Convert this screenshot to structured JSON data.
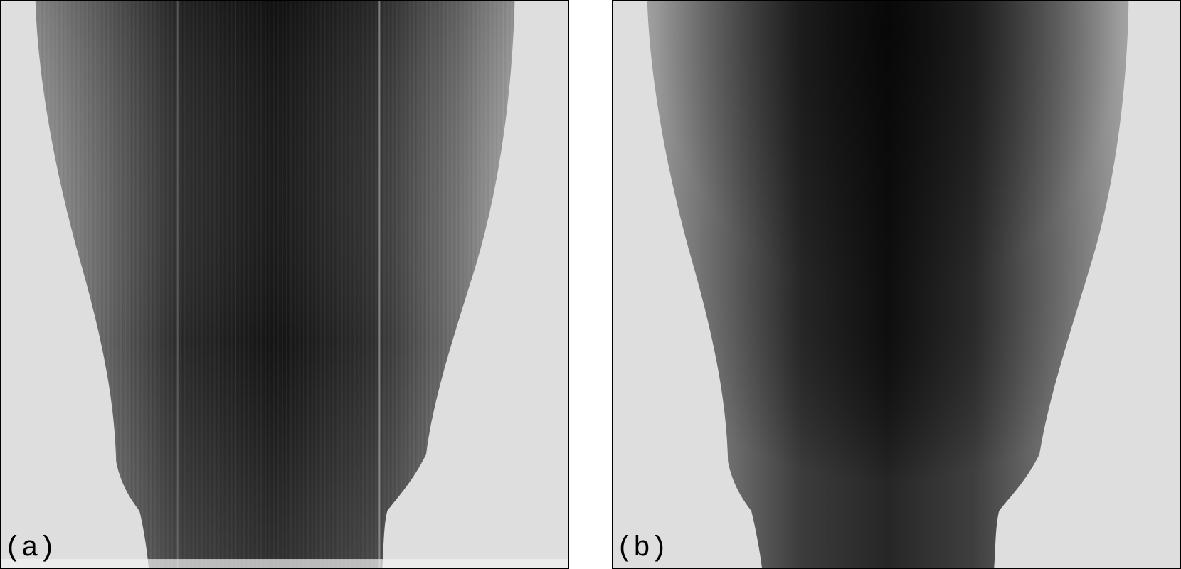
{
  "figure": {
    "panels": [
      {
        "id": "a",
        "label": "(a)",
        "description_icon": "sinogram-image"
      },
      {
        "id": "b",
        "label": "(b)",
        "description_icon": "sinogram-image"
      }
    ],
    "colors": {
      "background": "#dedede",
      "dark_core": "#0a0a0a",
      "mid_gray": "#4a4a4a",
      "border": "#000000"
    }
  }
}
